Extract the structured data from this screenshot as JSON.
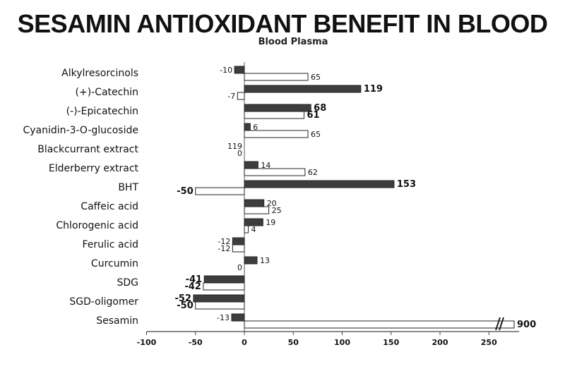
{
  "chart_data": {
    "type": "bar",
    "orientation": "horizontal",
    "title": "SESAMIN ANTIOXIDANT BENEFIT IN BLOOD",
    "subtitle": "Blood Plasma",
    "xlabel": "",
    "ylabel": "",
    "xlim": [
      -100,
      280
    ],
    "xticks": [
      "-100",
      "-50",
      "0",
      "50",
      "100",
      "150",
      "200",
      "250"
    ],
    "grid": false,
    "axis_break": "between 250 and 900 on the Sesamin bar",
    "categories": [
      "Alkylresorcinols",
      "(+)-Catechin",
      "(-)-Epicatechin",
      "Cyanidin-3-O-glucoside",
      "Blackcurrant extract",
      "Elderberry extract",
      "BHT",
      "Caffeic acid",
      "Chlorogenic acid",
      "Ferulic acid",
      "Curcumin",
      "SDG",
      "SGD-oligomer",
      "Sesamin"
    ],
    "series": [
      {
        "color": "#3d3d3d",
        "values": [
          -10,
          119,
          68,
          6,
          null,
          14,
          153,
          20,
          19,
          -12,
          13,
          -41,
          -52,
          -13
        ],
        "labels": [
          "-10",
          "119",
          "68",
          "6",
          "119",
          "14",
          "153",
          "20",
          "19",
          "-12",
          "13",
          "-41",
          "-52",
          "-13"
        ]
      },
      {
        "color": "#ffffff",
        "values": [
          65,
          -7,
          61,
          65,
          0,
          62,
          -50,
          25,
          4,
          -12,
          0,
          -42,
          -50,
          900
        ],
        "labels": [
          "65",
          "-7",
          "61",
          "65",
          "0",
          "62",
          "-50",
          "25",
          "4",
          "-12",
          "0",
          "-42",
          "-50",
          "900"
        ]
      }
    ],
    "bold_labels": [
      "119",
      "68",
      "61",
      "153",
      "900",
      "-41",
      "-42",
      "-52",
      "-50"
    ]
  }
}
